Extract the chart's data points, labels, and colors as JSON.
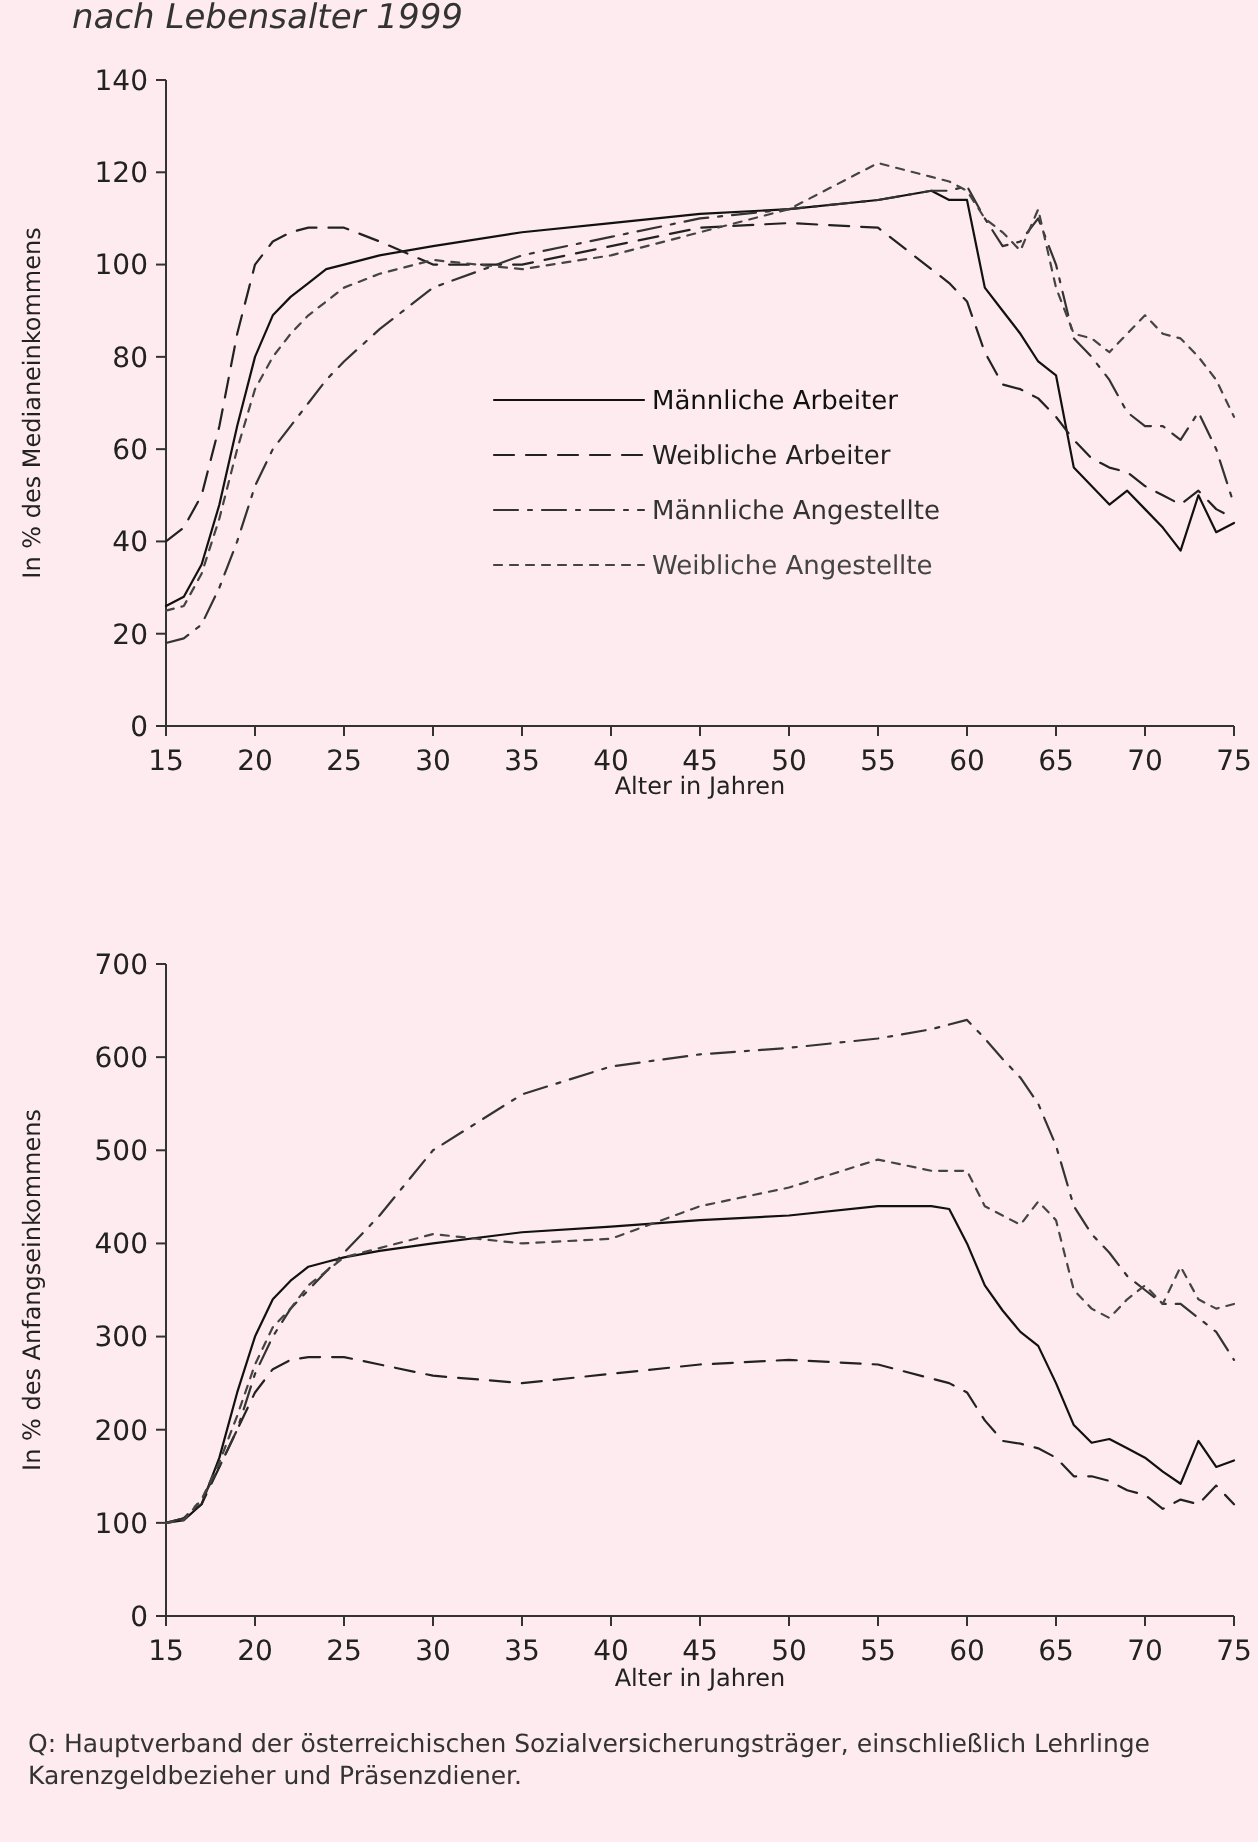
{
  "chart_data": [
    {
      "type": "line",
      "title": "nach Lebensalter 1999",
      "xlabel": "Alter in Jahren",
      "ylabel": "In % des Medianeinkommens",
      "x": [
        15,
        16,
        17,
        18,
        19,
        20,
        21,
        22,
        23,
        24,
        25,
        27,
        30,
        35,
        40,
        45,
        50,
        55,
        58,
        59,
        60,
        61,
        62,
        63,
        64,
        65,
        66,
        67,
        68,
        69,
        70,
        71,
        72,
        73,
        74,
        75
      ],
      "xlim": [
        15,
        75
      ],
      "xticks": [
        15,
        20,
        25,
        30,
        35,
        40,
        45,
        50,
        55,
        60,
        65,
        70,
        75
      ],
      "ylim": [
        0,
        140
      ],
      "yticks": [
        0,
        20,
        40,
        60,
        80,
        100,
        120,
        140
      ],
      "grid": false,
      "legend": "right",
      "series": [
        {
          "name": "Männliche Arbeiter",
          "color": "#111111",
          "line_style": "solid",
          "values": [
            26,
            28,
            35,
            48,
            65,
            80,
            89,
            93,
            96,
            99,
            100,
            102,
            104,
            107,
            109,
            111,
            112,
            114,
            116,
            114,
            114,
            95,
            90,
            85,
            79,
            76,
            56,
            52,
            48,
            51,
            47,
            43,
            38,
            50,
            42,
            44
          ]
        },
        {
          "name": "Weibliche Arbeiter",
          "color": "#222222",
          "line_style": "dashed",
          "values": [
            40,
            43,
            50,
            65,
            85,
            100,
            105,
            107,
            108,
            108,
            108,
            105,
            100,
            100,
            104,
            108,
            109,
            108,
            99,
            96,
            92,
            81,
            74,
            73,
            71,
            67,
            62,
            58,
            56,
            55,
            52,
            50,
            48,
            51,
            47,
            45
          ]
        },
        {
          "name": "Männliche Angestellte",
          "color": "#333333",
          "line_style": "dashdot",
          "values": [
            18,
            19,
            22,
            30,
            40,
            52,
            60,
            65,
            70,
            75,
            79,
            86,
            95,
            102,
            106,
            110,
            112,
            114,
            116,
            116,
            117,
            110,
            104,
            105,
            110,
            100,
            84,
            80,
            75,
            68,
            65,
            65,
            62,
            68,
            60,
            48
          ]
        },
        {
          "name": "Weibliche Angestellte",
          "color": "#444444",
          "line_style": "dotted",
          "values": [
            25,
            26,
            33,
            45,
            60,
            73,
            80,
            85,
            89,
            92,
            95,
            98,
            101,
            99,
            102,
            107,
            112,
            122,
            119,
            118,
            116,
            110,
            107,
            103,
            112,
            95,
            85,
            84,
            81,
            85,
            89,
            85,
            84,
            80,
            75,
            67
          ]
        }
      ]
    },
    {
      "type": "line",
      "xlabel": "Alter in Jahren",
      "ylabel": "In % des Anfangseinkommens",
      "x": [
        15,
        16,
        17,
        18,
        19,
        20,
        21,
        22,
        23,
        24,
        25,
        27,
        30,
        35,
        40,
        45,
        50,
        55,
        58,
        59,
        60,
        61,
        62,
        63,
        64,
        65,
        66,
        67,
        68,
        69,
        70,
        71,
        72,
        73,
        74,
        75
      ],
      "xlim": [
        15,
        75
      ],
      "xticks": [
        15,
        20,
        25,
        30,
        35,
        40,
        45,
        50,
        55,
        60,
        65,
        70,
        75
      ],
      "ylim": [
        0,
        700
      ],
      "yticks": [
        0,
        100,
        200,
        300,
        400,
        500,
        600,
        700
      ],
      "grid": false,
      "legend": false,
      "annotations": [
        "Q: Hauptverband der österreichischen Sozialversicherungsträger, einschließlich Lehrlinge Karenzgeldbezieher und Präsenzdiener."
      ],
      "series": [
        {
          "color": "#111111",
          "line_style": "solid",
          "values": [
            100,
            103,
            120,
            170,
            240,
            300,
            340,
            360,
            375,
            380,
            385,
            392,
            400,
            412,
            418,
            425,
            430,
            440,
            440,
            437,
            400,
            355,
            328,
            305,
            290,
            250,
            205,
            186,
            190,
            180,
            170,
            155,
            142,
            188,
            160,
            167
          ]
        },
        {
          "color": "#222222",
          "line_style": "dashed",
          "values": [
            100,
            105,
            120,
            160,
            200,
            240,
            265,
            275,
            278,
            278,
            278,
            270,
            258,
            250,
            260,
            270,
            275,
            270,
            255,
            250,
            240,
            210,
            188,
            185,
            180,
            170,
            150,
            150,
            145,
            135,
            130,
            115,
            125,
            120,
            140,
            120
          ]
        },
        {
          "color": "#333333",
          "line_style": "dashdot",
          "values": [
            100,
            105,
            125,
            160,
            200,
            260,
            300,
            330,
            350,
            370,
            390,
            430,
            500,
            560,
            590,
            603,
            610,
            620,
            630,
            635,
            640,
            620,
            598,
            578,
            550,
            505,
            440,
            410,
            390,
            365,
            350,
            335,
            335,
            320,
            305,
            275
          ]
        },
        {
          "color": "#444444",
          "line_style": "dotted",
          "values": [
            100,
            103,
            125,
            165,
            215,
            270,
            310,
            330,
            355,
            370,
            385,
            395,
            410,
            400,
            405,
            440,
            460,
            490,
            478,
            478,
            478,
            440,
            430,
            420,
            445,
            425,
            350,
            330,
            320,
            340,
            355,
            335,
            375,
            340,
            330,
            335
          ]
        }
      ]
    }
  ]
}
